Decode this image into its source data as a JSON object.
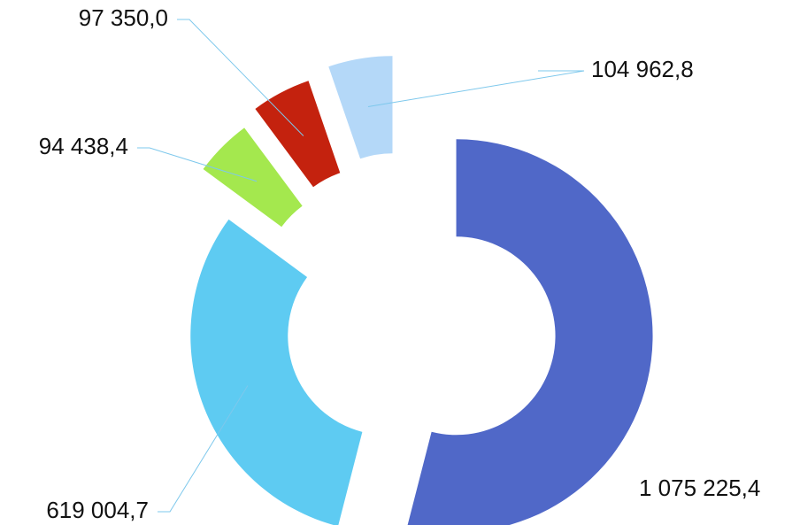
{
  "chart_data": {
    "type": "donut",
    "categories": [
      null,
      null,
      null,
      null,
      null
    ],
    "values": [
      1075225.4,
      619004.7,
      94438.4,
      97350.0,
      104962.8
    ],
    "value_labels": [
      "1 075 225,4",
      "619 004,7",
      "94 438,4",
      "97 350,0",
      "104 962,8"
    ],
    "colors": [
      "#5068c8",
      "#5ecbf2",
      "#a4e84e",
      "#c4220e",
      "#b4d8f8"
    ]
  }
}
